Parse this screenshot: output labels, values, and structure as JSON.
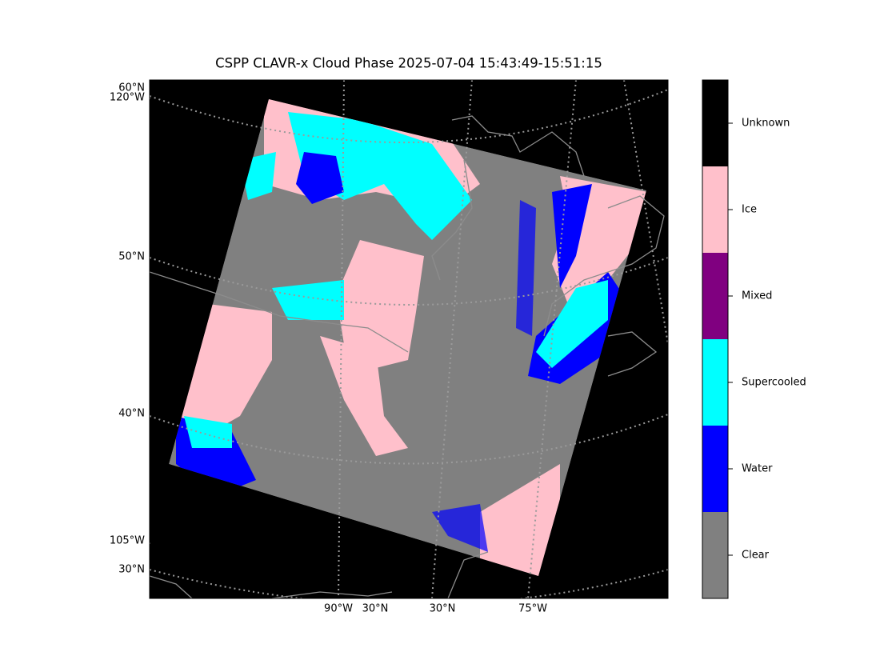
{
  "title": "CSPP CLAVR-x Cloud Phase 2025-07-04 15:43:49-15:51:15",
  "map": {
    "left_labels": [
      "60°N",
      "120°W",
      "50°N",
      "40°N",
      "105°W",
      "30°N"
    ],
    "bottom_labels": [
      "90°W",
      "30°N",
      "30°N",
      "75°W"
    ]
  },
  "colorbar": {
    "classes": [
      {
        "name": "Clear",
        "color": "#808080"
      },
      {
        "name": "Water",
        "color": "#0000ff"
      },
      {
        "name": "Supercooled",
        "color": "#00ffff"
      },
      {
        "name": "Mixed",
        "color": "#800080"
      },
      {
        "name": "Ice",
        "color": "#ffc0cb"
      },
      {
        "name": "Unknown",
        "color": "#000000"
      }
    ]
  }
}
